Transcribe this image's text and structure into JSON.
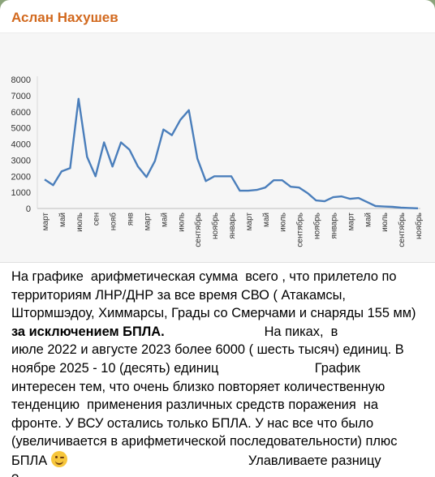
{
  "message": {
    "sender": "Аслан Нахушев",
    "caption_lines": [
      {
        "text": "На графике  арифметическая сумма  всего , что прилетело по",
        "bold": false
      },
      {
        "text": "территориям ЛНР/ДНР за все время СВО ( Атакамсы,",
        "bold": false
      },
      {
        "text": "Штормшэдоу, Химмарсы, Грады со Смерчами и снаряды 155 мм)",
        "bold": false
      },
      {
        "text": "за исключением БПЛА.",
        "bold": true,
        "tail": "                           На пиках,  в"
      },
      {
        "text": "июле 2022 и августе 2023 более 6000 ( шесть тысяч) единиц. В",
        "bold": false
      },
      {
        "text": "ноябре 2025 - 10 (десять) единиц                          График",
        "bold": false
      },
      {
        "text": "интересен тем, что очень близко повторяет количественную",
        "bold": false
      },
      {
        "text": "тенденцию  применения различных средств поражения  на",
        "bold": false
      },
      {
        "text": "фронте. У ВСУ остались только БПЛА. У нас все что было",
        "bold": false
      },
      {
        "text": "(увеличивается в арифметической последовательности) плюс",
        "bold": false
      },
      {
        "text": "БПЛА",
        "bold": false,
        "emoji": "winking-face",
        "tail": "                                                 Улавливаете разницу"
      },
      {
        "text": "?",
        "bold": false
      }
    ]
  },
  "chart_data": {
    "type": "line",
    "title": "",
    "xlabel": "",
    "ylabel": "",
    "ylim": [
      0,
      8000
    ],
    "yticks": [
      0,
      1000,
      2000,
      3000,
      4000,
      5000,
      6000,
      7000,
      8000
    ],
    "grid": false,
    "line_color": "#4a7ebb",
    "x_tick_labels": [
      "март",
      "май",
      "июль",
      "сен",
      "нояб",
      "янв",
      "март",
      "май",
      "июль",
      "сентябрь",
      "ноябрь",
      "январь",
      "март",
      "май",
      "июль",
      "сентябрь",
      "ноябрь",
      "январь",
      "март",
      "май",
      "июль",
      "сентябрь",
      "ноябрь"
    ],
    "series": [
      {
        "values": [
          1800,
          1450,
          2300,
          2500,
          6800,
          3200,
          2000,
          4100,
          2600,
          4100,
          3650,
          2600,
          1950,
          2950,
          4900,
          4550,
          5500,
          6100,
          3100,
          1700,
          2000,
          2000,
          2000,
          1100,
          1100,
          1150,
          1300,
          1750,
          1750,
          1350,
          1300,
          950,
          500,
          450,
          700,
          750,
          600,
          650,
          400,
          150,
          120,
          100,
          50,
          30,
          10
        ]
      }
    ]
  }
}
